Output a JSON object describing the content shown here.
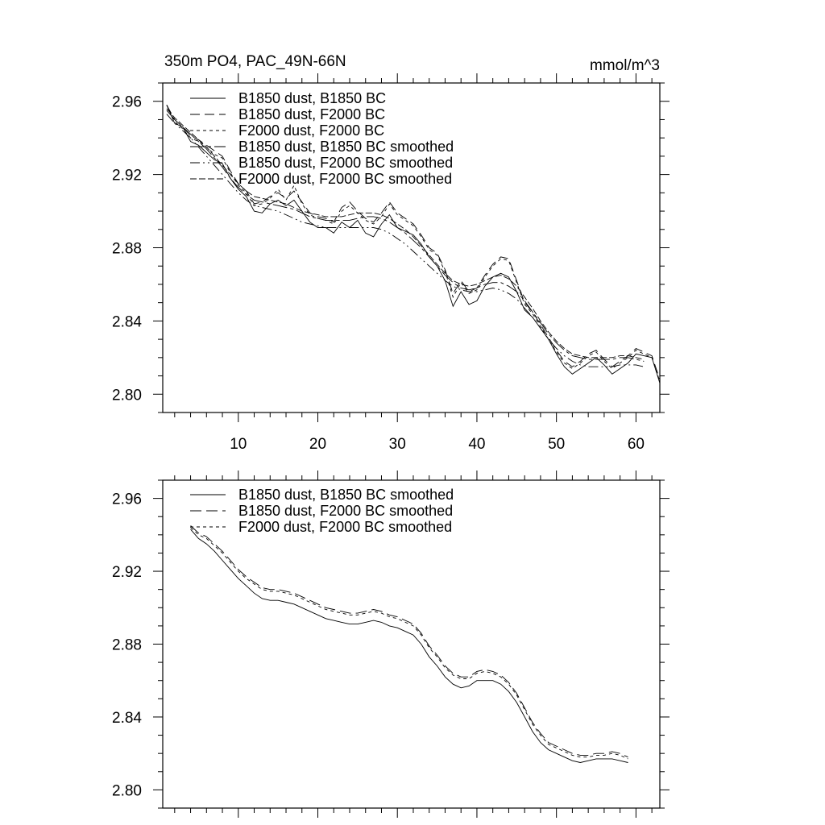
{
  "figure": {
    "title_left": "350m PO4, PAC_49N-66N",
    "title_right": "mmol/m^3"
  },
  "chart_data": [
    {
      "type": "line",
      "panel": "top",
      "xlim": [
        0.5,
        63
      ],
      "ylim": [
        2.79,
        2.97
      ],
      "x_ticks": [
        10,
        20,
        30,
        40,
        50,
        60
      ],
      "x_tick_labels": [
        "10",
        "20",
        "30",
        "40",
        "50",
        "60"
      ],
      "y_ticks": [
        2.8,
        2.84,
        2.88,
        2.92,
        2.96
      ],
      "y_tick_labels": [
        "2.80",
        "2.84",
        "2.88",
        "2.92",
        "2.96"
      ],
      "legend_position": "top-left",
      "series": [
        {
          "name": "B1850 dust, B1850 BC",
          "dash": "solid",
          "values": [
            2.958,
            2.948,
            2.946,
            2.938,
            2.936,
            2.932,
            2.928,
            2.926,
            2.918,
            2.912,
            2.908,
            2.9,
            2.899,
            2.904,
            2.906,
            2.903,
            2.906,
            2.9,
            2.894,
            2.891,
            2.891,
            2.888,
            2.894,
            2.891,
            2.895,
            2.888,
            2.886,
            2.893,
            2.898,
            2.891,
            2.889,
            2.887,
            2.882,
            2.875,
            2.87,
            2.862,
            2.848,
            2.856,
            2.849,
            2.851,
            2.859,
            2.864,
            2.866,
            2.864,
            2.856,
            2.846,
            2.842,
            2.836,
            2.83,
            2.822,
            2.815,
            2.811,
            2.814,
            2.817,
            2.82,
            2.816,
            2.811,
            2.814,
            2.817,
            2.822,
            2.821,
            2.82,
            2.806
          ]
        },
        {
          "name": "B1850 dust, F2000 BC",
          "dash": "12 6",
          "values": [
            2.958,
            2.95,
            2.946,
            2.941,
            2.939,
            2.936,
            2.933,
            2.93,
            2.922,
            2.915,
            2.911,
            2.904,
            2.905,
            2.908,
            2.91,
            2.907,
            2.911,
            2.905,
            2.899,
            2.897,
            2.896,
            2.894,
            2.902,
            2.905,
            2.9,
            2.896,
            2.894,
            2.899,
            2.905,
            2.899,
            2.896,
            2.893,
            2.887,
            2.88,
            2.877,
            2.868,
            2.855,
            2.862,
            2.856,
            2.858,
            2.865,
            2.871,
            2.875,
            2.874,
            2.862,
            2.85,
            2.845,
            2.838,
            2.831,
            2.824,
            2.818,
            2.815,
            2.818,
            2.822,
            2.824,
            2.819,
            2.815,
            2.818,
            2.821,
            2.825,
            2.823,
            2.821,
            2.808
          ]
        },
        {
          "name": "F2000 dust, F2000 BC",
          "dash": "4 4",
          "values": [
            2.958,
            2.949,
            2.945,
            2.94,
            2.938,
            2.935,
            2.931,
            2.929,
            2.921,
            2.914,
            2.91,
            2.903,
            2.904,
            2.907,
            2.912,
            2.906,
            2.914,
            2.904,
            2.898,
            2.896,
            2.895,
            2.893,
            2.9,
            2.903,
            2.899,
            2.895,
            2.893,
            2.897,
            2.904,
            2.898,
            2.895,
            2.892,
            2.886,
            2.879,
            2.876,
            2.867,
            2.853,
            2.861,
            2.855,
            2.857,
            2.864,
            2.87,
            2.874,
            2.873,
            2.861,
            2.849,
            2.844,
            2.837,
            2.83,
            2.823,
            2.817,
            2.814,
            2.817,
            2.821,
            2.823,
            2.818,
            2.814,
            2.817,
            2.82,
            2.824,
            2.822,
            2.82,
            2.807
          ]
        },
        {
          "name": "B1850 dust, B1850 BC smoothed",
          "dash": "18 4 4 4",
          "values": [
            2.955,
            2.95,
            2.946,
            2.942,
            2.938,
            2.934,
            2.929,
            2.924,
            2.918,
            2.913,
            2.909,
            2.906,
            2.905,
            2.904,
            2.903,
            2.902,
            2.901,
            2.899,
            2.897,
            2.896,
            2.895,
            2.895,
            2.895,
            2.895,
            2.896,
            2.897,
            2.897,
            2.896,
            2.894,
            2.891,
            2.888,
            2.884,
            2.88,
            2.875,
            2.87,
            2.865,
            2.861,
            2.858,
            2.857,
            2.858,
            2.86,
            2.861,
            2.861,
            2.859,
            2.856,
            2.851,
            2.845,
            2.839,
            2.833,
            2.828,
            2.824,
            2.821,
            2.82,
            2.819,
            2.819,
            2.819,
            2.819,
            2.82,
            2.82,
            2.819,
            2.818
          ]
        },
        {
          "name": "B1850 dust, F2000 BC smoothed",
          "dash": "12 4 2 4 2 4",
          "values": [
            2.953,
            2.948,
            2.944,
            2.94,
            2.935,
            2.93,
            2.925,
            2.92,
            2.915,
            2.91,
            2.906,
            2.903,
            2.902,
            2.901,
            2.9,
            2.898,
            2.896,
            2.894,
            2.893,
            2.892,
            2.891,
            2.891,
            2.891,
            2.891,
            2.891,
            2.891,
            2.891,
            2.89,
            2.888,
            2.885,
            2.882,
            2.878,
            2.874,
            2.87,
            2.866,
            2.862,
            2.859,
            2.857,
            2.856,
            2.856,
            2.857,
            2.858,
            2.857,
            2.855,
            2.852,
            2.847,
            2.842,
            2.836,
            2.83,
            2.825,
            2.821,
            2.818,
            2.816,
            2.815,
            2.815,
            2.815,
            2.815,
            2.816,
            2.816,
            2.816,
            2.815
          ]
        },
        {
          "name": "F2000 dust, F2000 BC smoothed",
          "dash": "8 3",
          "values": [
            2.956,
            2.951,
            2.947,
            2.943,
            2.939,
            2.935,
            2.93,
            2.925,
            2.92,
            2.915,
            2.911,
            2.908,
            2.907,
            2.906,
            2.905,
            2.904,
            2.902,
            2.9,
            2.899,
            2.898,
            2.897,
            2.897,
            2.897,
            2.898,
            2.899,
            2.899,
            2.899,
            2.898,
            2.896,
            2.893,
            2.89,
            2.886,
            2.881,
            2.876,
            2.871,
            2.866,
            2.862,
            2.86,
            2.859,
            2.86,
            2.862,
            2.864,
            2.865,
            2.863,
            2.859,
            2.853,
            2.847,
            2.84,
            2.834,
            2.829,
            2.825,
            2.822,
            2.821,
            2.82,
            2.82,
            2.82,
            2.82,
            2.821,
            2.821,
            2.82,
            2.819
          ]
        }
      ]
    },
    {
      "type": "line",
      "panel": "bottom",
      "xlim": [
        0.5,
        63
      ],
      "ylim": [
        2.79,
        2.97
      ],
      "x_ticks": [
        10,
        20,
        30,
        40,
        50,
        60
      ],
      "y_ticks": [
        2.8,
        2.84,
        2.88,
        2.92,
        2.96
      ],
      "y_tick_labels": [
        "2.80",
        "2.84",
        "2.88",
        "2.92",
        "2.96"
      ],
      "legend_position": "top-left",
      "series": [
        {
          "name": "B1850 dust, B1850 BC smoothed",
          "dash": "solid",
          "x_start": 4,
          "values": [
            2.943,
            2.938,
            2.935,
            2.931,
            2.926,
            2.921,
            2.916,
            2.912,
            2.908,
            2.905,
            2.904,
            2.904,
            2.903,
            2.902,
            2.9,
            2.898,
            2.896,
            2.894,
            2.893,
            2.892,
            2.891,
            2.891,
            2.892,
            2.893,
            2.892,
            2.89,
            2.889,
            2.887,
            2.885,
            2.88,
            2.873,
            2.868,
            2.862,
            2.858,
            2.856,
            2.857,
            2.86,
            2.86,
            2.86,
            2.858,
            2.854,
            2.848,
            2.84,
            2.832,
            2.826,
            2.822,
            2.82,
            2.818,
            2.816,
            2.815,
            2.816,
            2.817,
            2.817,
            2.817,
            2.816,
            2.815
          ]
        },
        {
          "name": "B1850 dust, F2000 BC smoothed",
          "dash": "14 6",
          "x_start": 4,
          "values": [
            2.945,
            2.941,
            2.939,
            2.935,
            2.931,
            2.926,
            2.921,
            2.917,
            2.914,
            2.911,
            2.91,
            2.91,
            2.909,
            2.908,
            2.906,
            2.904,
            2.902,
            2.9,
            2.899,
            2.898,
            2.897,
            2.897,
            2.898,
            2.899,
            2.898,
            2.896,
            2.895,
            2.893,
            2.891,
            2.886,
            2.879,
            2.874,
            2.868,
            2.864,
            2.862,
            2.862,
            2.865,
            2.866,
            2.865,
            2.863,
            2.859,
            2.853,
            2.845,
            2.837,
            2.831,
            2.826,
            2.824,
            2.822,
            2.82,
            2.819,
            2.819,
            2.82,
            2.82,
            2.821,
            2.82,
            2.818
          ]
        },
        {
          "name": "F2000 dust, F2000 BC smoothed",
          "dash": "4 4",
          "x_start": 4,
          "values": [
            2.944,
            2.94,
            2.938,
            2.934,
            2.93,
            2.925,
            2.92,
            2.916,
            2.913,
            2.91,
            2.909,
            2.909,
            2.908,
            2.907,
            2.905,
            2.903,
            2.901,
            2.899,
            2.898,
            2.897,
            2.896,
            2.896,
            2.897,
            2.898,
            2.897,
            2.895,
            2.894,
            2.892,
            2.89,
            2.885,
            2.878,
            2.873,
            2.867,
            2.863,
            2.861,
            2.861,
            2.864,
            2.865,
            2.864,
            2.862,
            2.858,
            2.852,
            2.844,
            2.836,
            2.83,
            2.825,
            2.823,
            2.821,
            2.819,
            2.818,
            2.818,
            2.819,
            2.819,
            2.82,
            2.819,
            2.817
          ]
        }
      ]
    }
  ]
}
